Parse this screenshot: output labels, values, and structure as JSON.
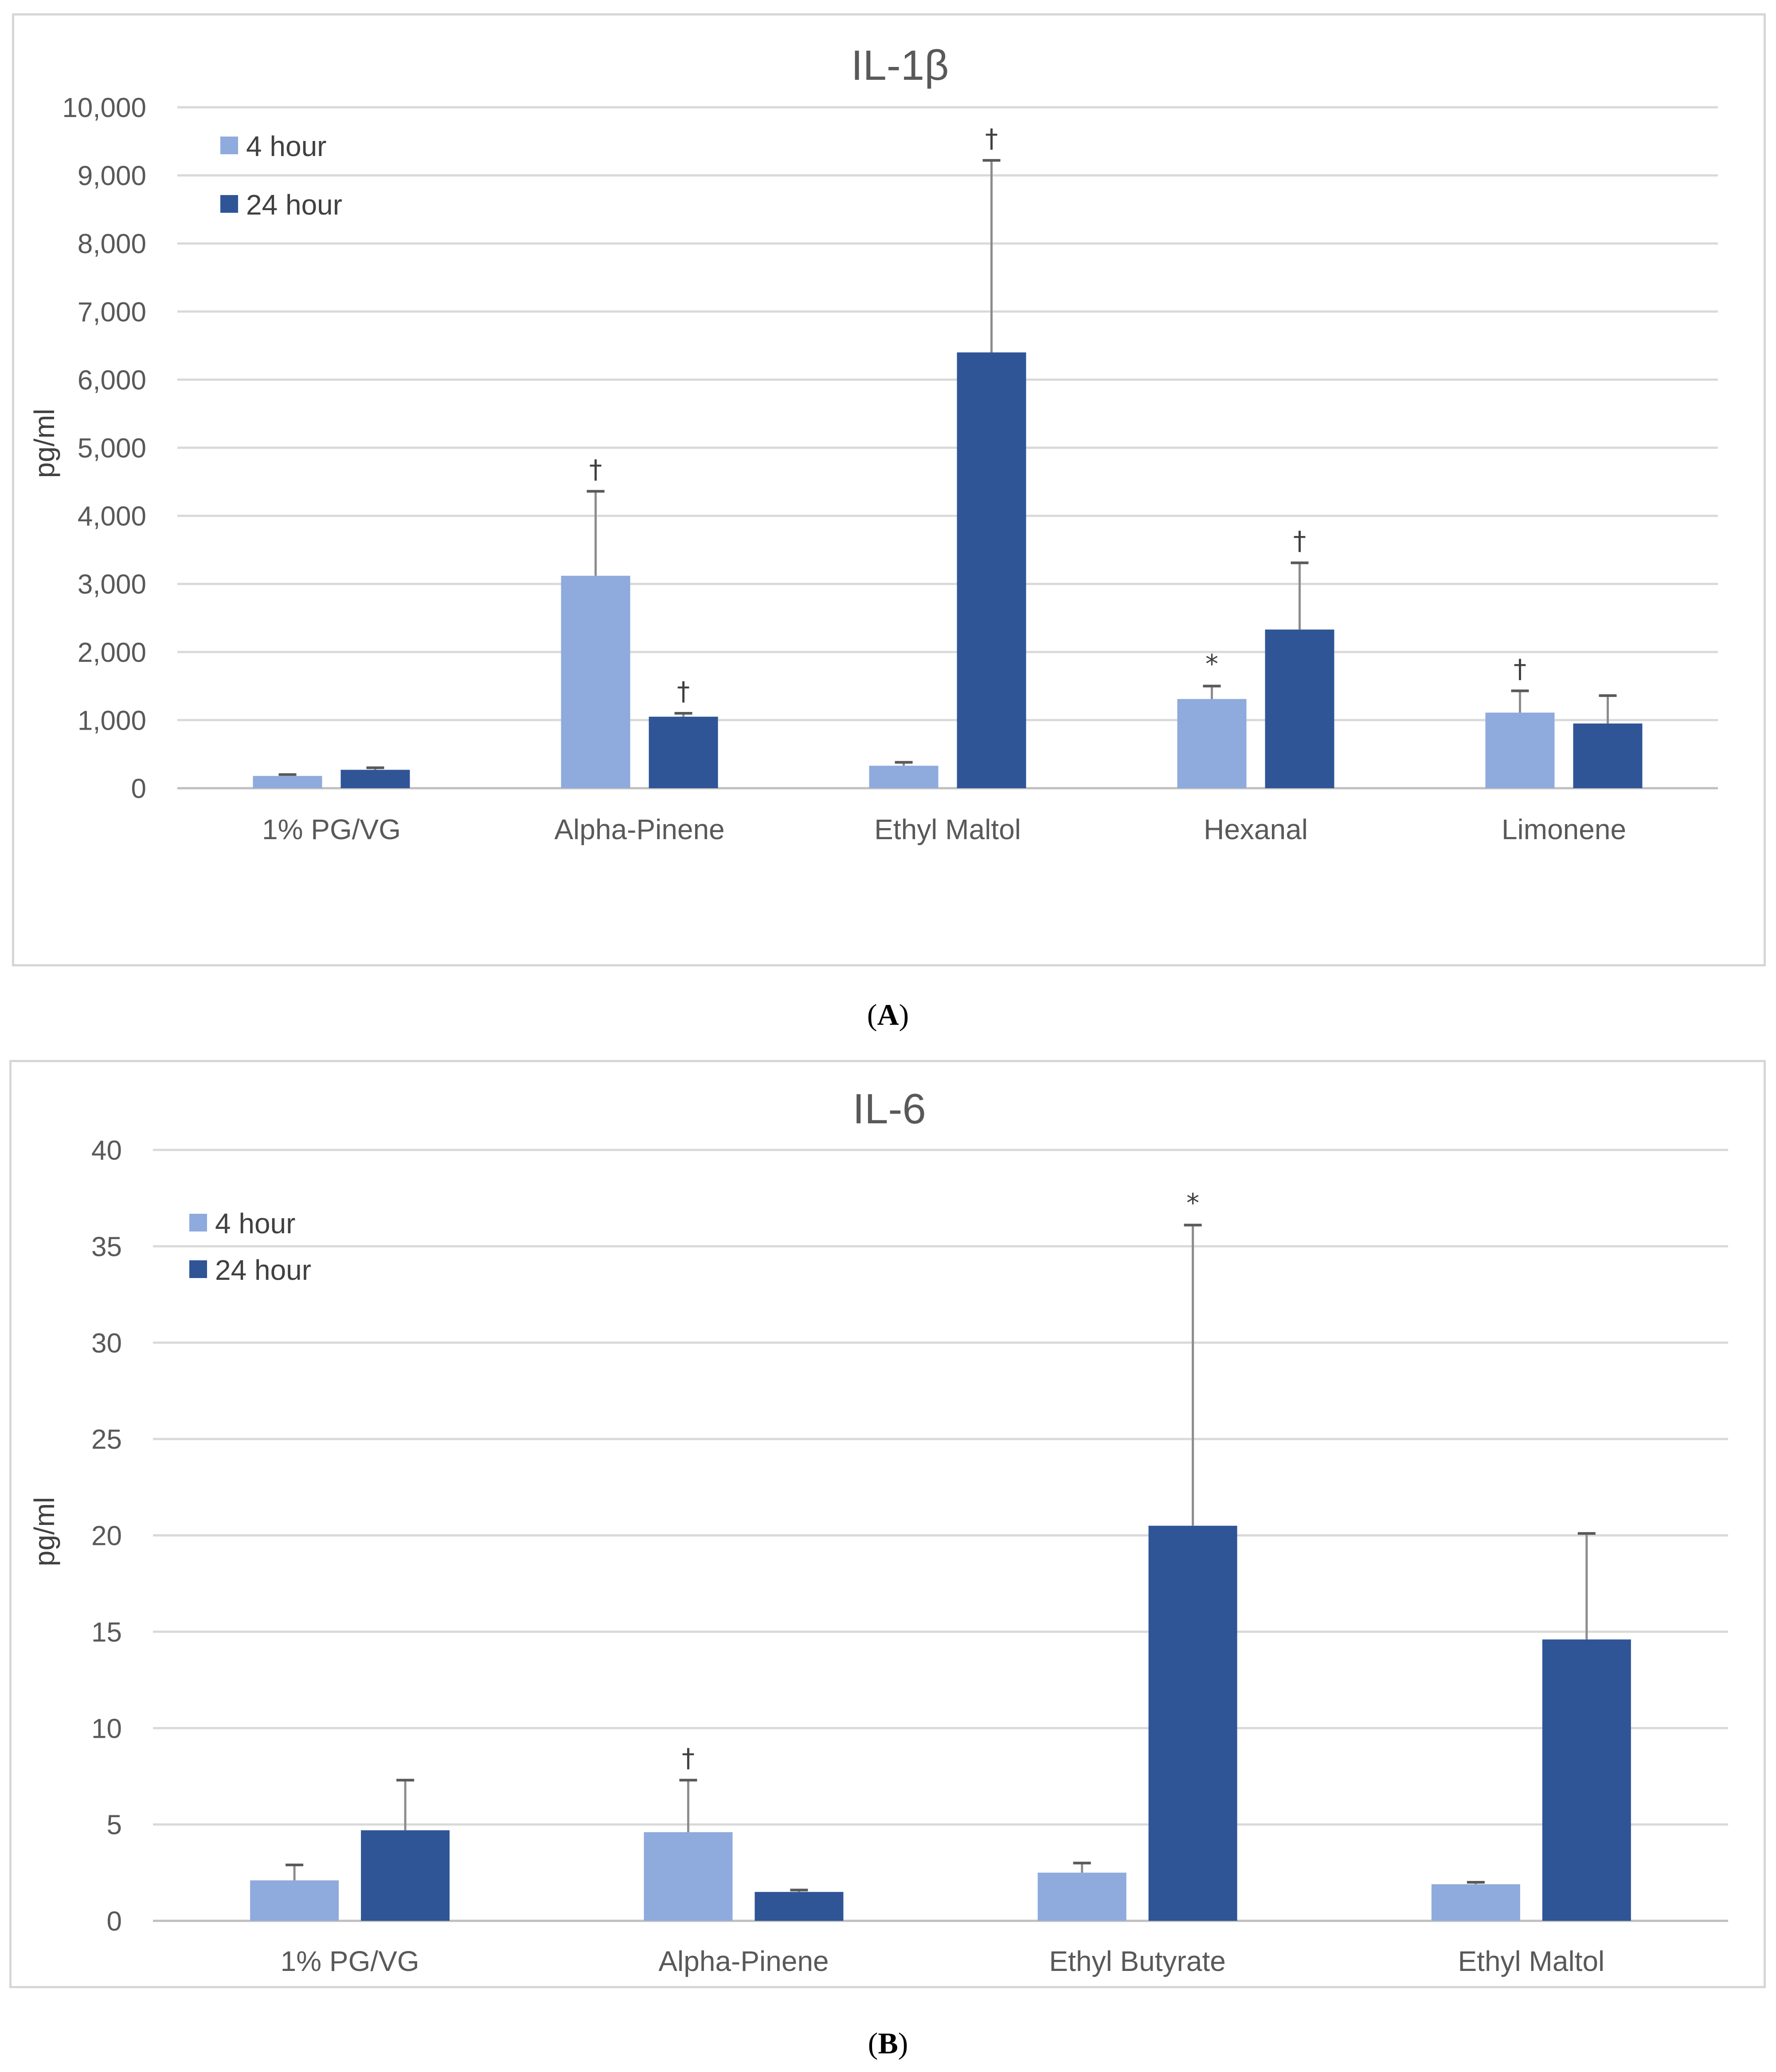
{
  "chart_data": [
    {
      "type": "bar",
      "title": "IL-1β",
      "xlabel": "",
      "ylabel": "pg/ml",
      "ylim": [
        0,
        10000
      ],
      "yticks": [
        "0",
        "1,000",
        "2,000",
        "3,000",
        "4,000",
        "5,000",
        "6,000",
        "7,000",
        "8,000",
        "9,000",
        "10,000"
      ],
      "categories": [
        "1% PG/VG",
        "Alpha-Pinene",
        "Ethyl Maltol",
        "Hexanal",
        "Limonene"
      ],
      "grid": true,
      "legend_position": "top-left",
      "series": [
        {
          "name": "4 hour",
          "color": "#8faadc",
          "values": [
            180,
            3120,
            330,
            1310,
            1110
          ],
          "error_tops": [
            200,
            4360,
            380,
            1500,
            1430
          ],
          "annotations": [
            "",
            "†",
            "",
            "*",
            "†"
          ]
        },
        {
          "name": "24 hour",
          "color": "#2f5597",
          "values": [
            270,
            1050,
            6400,
            2330,
            950
          ],
          "error_tops": [
            300,
            1100,
            9220,
            3310,
            1360
          ],
          "annotations": [
            "",
            "†",
            "†",
            "†",
            ""
          ]
        }
      ],
      "caption": "A"
    },
    {
      "type": "bar",
      "title": "IL-6",
      "xlabel": "",
      "ylabel": "pg/ml",
      "ylim": [
        0,
        40
      ],
      "yticks": [
        "0",
        "5",
        "10",
        "15",
        "20",
        "25",
        "30",
        "35",
        "40"
      ],
      "categories": [
        "1% PG/VG",
        "Alpha-Pinene",
        "Ethyl Butyrate",
        "Ethyl Maltol"
      ],
      "grid": true,
      "legend_position": "top-left",
      "series": [
        {
          "name": "4 hour",
          "color": "#8faadc",
          "values": [
            2.1,
            4.6,
            2.5,
            1.9
          ],
          "error_tops": [
            2.9,
            7.3,
            3.0,
            2.0
          ],
          "annotations": [
            "",
            "†",
            "",
            ""
          ]
        },
        {
          "name": "24 hour",
          "color": "#2f5597",
          "values": [
            4.7,
            1.5,
            20.5,
            14.6
          ],
          "error_tops": [
            7.3,
            1.6,
            36.1,
            20.1
          ],
          "annotations": [
            "",
            "",
            "*",
            ""
          ]
        }
      ],
      "caption": "B"
    }
  ]
}
